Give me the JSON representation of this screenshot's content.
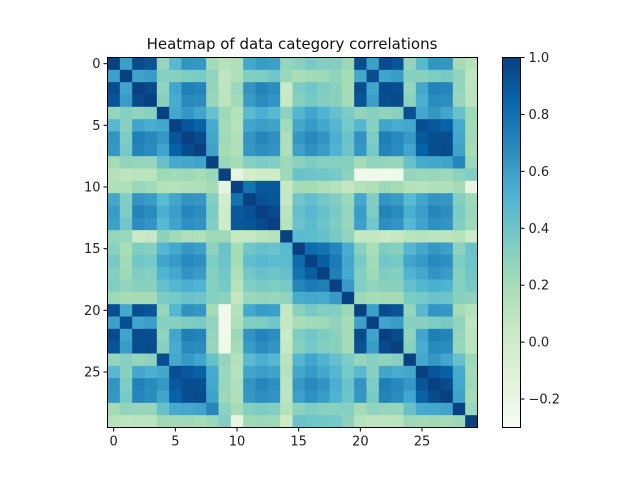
{
  "chart_data": {
    "type": "heatmap",
    "title": "Heatmap of data category correlations",
    "xlabel": "",
    "ylabel": "",
    "n": 30,
    "x_ticks": [
      0,
      5,
      10,
      15,
      20,
      25
    ],
    "y_ticks": [
      0,
      5,
      10,
      15,
      20,
      25
    ],
    "colormap": "GnBu",
    "colormap_stops": [
      "#f7fcf0",
      "#e0f3db",
      "#ccebc5",
      "#a8ddb5",
      "#7bccc4",
      "#4eb3d3",
      "#2b8cbe",
      "#0868ac",
      "#084081"
    ],
    "vmin": -0.3,
    "vmax": 1.0,
    "colorbar_ticks": [
      1.0,
      0.8,
      0.6,
      0.4,
      0.2,
      0.0,
      -0.2
    ],
    "colorbar_tick_labels": [
      "1.0",
      "0.8",
      "0.6",
      "0.4",
      "0.2",
      "0.0",
      "−0.2"
    ],
    "grid": false,
    "colorbar_position": "right",
    "values": [
      [
        1,
        0.59,
        0.95,
        0.92,
        0.26,
        0.48,
        0.64,
        0.63,
        0.2,
        0.13,
        0.15,
        0.56,
        0.61,
        0.59,
        0.26,
        0.3,
        0.36,
        0.32,
        0.33,
        0.23,
        0.94,
        0.59,
        0.95,
        0.92,
        0.26,
        0.48,
        0.64,
        0.63,
        0.2,
        0.13
      ],
      [
        0.59,
        1,
        0.58,
        0.61,
        0.31,
        0.3,
        0.34,
        0.36,
        0.27,
        0.09,
        0.15,
        0.33,
        0.34,
        0.39,
        0.24,
        0.18,
        0.21,
        0.22,
        0.27,
        0.19,
        0.56,
        0.94,
        0.58,
        0.61,
        0.31,
        0.3,
        0.34,
        0.36,
        0.27,
        0.09
      ],
      [
        0.95,
        0.58,
        1,
        0.96,
        0.27,
        0.57,
        0.73,
        0.71,
        0.26,
        0.1,
        0.24,
        0.64,
        0.71,
        0.67,
        0.04,
        0.34,
        0.39,
        0.34,
        0.3,
        0.2,
        0.94,
        0.57,
        0.95,
        0.94,
        0.26,
        0.56,
        0.72,
        0.7,
        0.26,
        0.1
      ],
      [
        0.92,
        0.61,
        0.96,
        1,
        0.3,
        0.54,
        0.69,
        0.68,
        0.25,
        0.11,
        0.21,
        0.61,
        0.68,
        0.64,
        0.05,
        0.31,
        0.37,
        0.32,
        0.3,
        0.2,
        0.91,
        0.6,
        0.94,
        0.95,
        0.29,
        0.53,
        0.68,
        0.67,
        0.25,
        0.11
      ],
      [
        0.26,
        0.31,
        0.27,
        0.3,
        1,
        0.56,
        0.63,
        0.57,
        0.42,
        0.23,
        0.14,
        0.47,
        0.53,
        0.48,
        0.29,
        0.49,
        0.57,
        0.51,
        0.43,
        0.35,
        0.26,
        0.31,
        0.27,
        0.3,
        0.94,
        0.56,
        0.63,
        0.57,
        0.42,
        0.23
      ],
      [
        0.48,
        0.3,
        0.57,
        0.54,
        0.56,
        1,
        0.91,
        0.86,
        0.55,
        0.21,
        0.13,
        0.57,
        0.6,
        0.58,
        0.21,
        0.56,
        0.62,
        0.56,
        0.49,
        0.37,
        0.49,
        0.3,
        0.57,
        0.54,
        0.56,
        0.94,
        0.9,
        0.86,
        0.55,
        0.21
      ],
      [
        0.64,
        0.34,
        0.73,
        0.69,
        0.63,
        0.91,
        1,
        0.95,
        0.56,
        0.22,
        0.15,
        0.64,
        0.7,
        0.66,
        0.16,
        0.63,
        0.69,
        0.64,
        0.53,
        0.41,
        0.65,
        0.34,
        0.73,
        0.69,
        0.62,
        0.9,
        0.94,
        0.94,
        0.56,
        0.22
      ],
      [
        0.63,
        0.36,
        0.71,
        0.68,
        0.57,
        0.86,
        0.95,
        1,
        0.58,
        0.2,
        0.15,
        0.63,
        0.67,
        0.64,
        0.15,
        0.59,
        0.66,
        0.61,
        0.51,
        0.4,
        0.63,
        0.36,
        0.71,
        0.68,
        0.57,
        0.86,
        0.94,
        0.95,
        0.58,
        0.2
      ],
      [
        0.2,
        0.27,
        0.26,
        0.25,
        0.42,
        0.55,
        0.56,
        0.58,
        1,
        0.24,
        0.2,
        0.32,
        0.35,
        0.33,
        0.23,
        0.29,
        0.34,
        0.31,
        0.31,
        0.31,
        0.2,
        0.27,
        0.26,
        0.25,
        0.42,
        0.55,
        0.56,
        0.58,
        0.7,
        0.24
      ],
      [
        0.13,
        0.09,
        0.1,
        0.11,
        0.23,
        0.21,
        0.22,
        0.2,
        0.24,
        1,
        -0.17,
        -0.03,
        0.01,
        0.0,
        0.22,
        0.41,
        0.4,
        0.39,
        0.37,
        0.29,
        -0.25,
        -0.25,
        -0.25,
        -0.24,
        0.26,
        0.24,
        0.25,
        0.23,
        0.29,
        0.33
      ],
      [
        0.15,
        0.15,
        0.24,
        0.21,
        0.14,
        0.13,
        0.15,
        0.15,
        0.2,
        -0.17,
        1,
        0.79,
        0.9,
        0.9,
        0.05,
        0.19,
        0.19,
        0.16,
        0.13,
        0.07,
        0.14,
        0.15,
        0.23,
        0.2,
        0.14,
        0.13,
        0.15,
        0.15,
        0.2,
        -0.17
      ],
      [
        0.56,
        0.33,
        0.64,
        0.61,
        0.47,
        0.57,
        0.64,
        0.63,
        0.32,
        -0.03,
        0.79,
        1,
        0.93,
        0.91,
        0.05,
        0.39,
        0.44,
        0.38,
        0.33,
        0.24,
        0.56,
        0.33,
        0.64,
        0.61,
        0.47,
        0.57,
        0.64,
        0.63,
        0.32,
        0.22
      ],
      [
        0.61,
        0.34,
        0.71,
        0.68,
        0.53,
        0.6,
        0.7,
        0.67,
        0.35,
        0.01,
        0.9,
        0.93,
        1,
        0.96,
        0.1,
        0.43,
        0.48,
        0.42,
        0.36,
        0.26,
        0.61,
        0.34,
        0.71,
        0.68,
        0.53,
        0.6,
        0.7,
        0.67,
        0.35,
        0.24
      ],
      [
        0.59,
        0.39,
        0.67,
        0.64,
        0.48,
        0.58,
        0.66,
        0.64,
        0.33,
        0.0,
        0.9,
        0.91,
        0.96,
        1,
        0.12,
        0.41,
        0.46,
        0.4,
        0.34,
        0.25,
        0.59,
        0.39,
        0.67,
        0.64,
        0.48,
        0.58,
        0.66,
        0.64,
        0.33,
        0.23
      ],
      [
        0.26,
        0.24,
        0.04,
        0.05,
        0.29,
        0.21,
        0.16,
        0.15,
        0.23,
        0.22,
        0.05,
        0.05,
        0.1,
        0.12,
        1,
        0.47,
        0.46,
        0.43,
        0.36,
        0.27,
        0.06,
        0.07,
        0.04,
        0.05,
        0.11,
        0.12,
        0.1,
        0.09,
        0.13,
        0.02
      ],
      [
        0.3,
        0.18,
        0.34,
        0.31,
        0.49,
        0.56,
        0.63,
        0.59,
        0.29,
        0.41,
        0.19,
        0.39,
        0.43,
        0.41,
        0.47,
        1,
        0.82,
        0.79,
        0.7,
        0.54,
        0.3,
        0.18,
        0.34,
        0.31,
        0.49,
        0.56,
        0.63,
        0.59,
        0.29,
        0.41
      ],
      [
        0.36,
        0.21,
        0.39,
        0.37,
        0.57,
        0.62,
        0.69,
        0.66,
        0.34,
        0.4,
        0.19,
        0.44,
        0.48,
        0.46,
        0.46,
        0.82,
        1,
        0.88,
        0.75,
        0.56,
        0.36,
        0.21,
        0.39,
        0.37,
        0.57,
        0.62,
        0.69,
        0.66,
        0.34,
        0.4
      ],
      [
        0.32,
        0.22,
        0.34,
        0.32,
        0.51,
        0.56,
        0.64,
        0.61,
        0.31,
        0.39,
        0.16,
        0.38,
        0.42,
        0.4,
        0.43,
        0.79,
        0.88,
        1,
        0.73,
        0.55,
        0.32,
        0.22,
        0.34,
        0.32,
        0.51,
        0.56,
        0.64,
        0.61,
        0.31,
        0.39
      ],
      [
        0.33,
        0.27,
        0.3,
        0.3,
        0.43,
        0.49,
        0.53,
        0.51,
        0.31,
        0.37,
        0.13,
        0.33,
        0.36,
        0.34,
        0.36,
        0.7,
        0.75,
        0.73,
        1,
        0.62,
        0.33,
        0.27,
        0.3,
        0.3,
        0.43,
        0.49,
        0.53,
        0.51,
        0.31,
        0.37
      ],
      [
        0.23,
        0.19,
        0.2,
        0.2,
        0.35,
        0.37,
        0.41,
        0.4,
        0.31,
        0.29,
        0.07,
        0.24,
        0.26,
        0.25,
        0.27,
        0.54,
        0.56,
        0.55,
        0.62,
        1,
        0.23,
        0.19,
        0.2,
        0.2,
        0.35,
        0.37,
        0.41,
        0.4,
        0.31,
        0.29
      ],
      [
        0.94,
        0.56,
        0.94,
        0.91,
        0.26,
        0.49,
        0.65,
        0.63,
        0.2,
        -0.25,
        0.14,
        0.56,
        0.61,
        0.59,
        0.06,
        0.3,
        0.36,
        0.32,
        0.33,
        0.23,
        1,
        0.59,
        0.95,
        0.92,
        0.26,
        0.48,
        0.64,
        0.63,
        0.2,
        0.13
      ],
      [
        0.59,
        0.94,
        0.57,
        0.6,
        0.31,
        0.3,
        0.34,
        0.36,
        0.27,
        -0.25,
        0.15,
        0.33,
        0.34,
        0.39,
        0.07,
        0.18,
        0.21,
        0.22,
        0.27,
        0.19,
        0.59,
        1,
        0.58,
        0.61,
        0.31,
        0.3,
        0.34,
        0.36,
        0.27,
        0.09
      ],
      [
        0.95,
        0.58,
        0.95,
        0.94,
        0.27,
        0.57,
        0.73,
        0.71,
        0.26,
        -0.25,
        0.23,
        0.64,
        0.71,
        0.67,
        0.04,
        0.34,
        0.39,
        0.34,
        0.3,
        0.2,
        0.95,
        0.58,
        1,
        0.96,
        0.27,
        0.57,
        0.73,
        0.71,
        0.26,
        0.1
      ],
      [
        0.92,
        0.61,
        0.94,
        0.95,
        0.3,
        0.54,
        0.69,
        0.68,
        0.25,
        -0.24,
        0.2,
        0.61,
        0.68,
        0.64,
        0.05,
        0.31,
        0.37,
        0.32,
        0.3,
        0.2,
        0.92,
        0.61,
        0.96,
        1,
        0.3,
        0.54,
        0.69,
        0.68,
        0.25,
        0.11
      ],
      [
        0.26,
        0.31,
        0.26,
        0.29,
        0.94,
        0.56,
        0.62,
        0.57,
        0.42,
        0.26,
        0.14,
        0.47,
        0.53,
        0.48,
        0.11,
        0.49,
        0.57,
        0.51,
        0.43,
        0.35,
        0.26,
        0.31,
        0.27,
        0.3,
        1,
        0.56,
        0.63,
        0.57,
        0.42,
        0.23
      ],
      [
        0.48,
        0.3,
        0.56,
        0.53,
        0.56,
        0.94,
        0.9,
        0.86,
        0.55,
        0.24,
        0.13,
        0.57,
        0.6,
        0.58,
        0.12,
        0.56,
        0.62,
        0.56,
        0.49,
        0.37,
        0.48,
        0.3,
        0.57,
        0.54,
        0.56,
        1,
        0.91,
        0.86,
        0.55,
        0.21
      ],
      [
        0.64,
        0.34,
        0.72,
        0.68,
        0.63,
        0.9,
        0.94,
        0.94,
        0.56,
        0.25,
        0.15,
        0.64,
        0.7,
        0.66,
        0.1,
        0.63,
        0.69,
        0.64,
        0.53,
        0.41,
        0.64,
        0.34,
        0.73,
        0.69,
        0.63,
        0.91,
        1,
        0.95,
        0.56,
        0.22
      ],
      [
        0.63,
        0.36,
        0.7,
        0.67,
        0.57,
        0.86,
        0.94,
        0.95,
        0.58,
        0.23,
        0.15,
        0.63,
        0.67,
        0.64,
        0.09,
        0.59,
        0.66,
        0.61,
        0.51,
        0.4,
        0.63,
        0.36,
        0.71,
        0.68,
        0.57,
        0.86,
        0.95,
        1,
        0.58,
        0.2
      ],
      [
        0.2,
        0.27,
        0.26,
        0.25,
        0.42,
        0.55,
        0.56,
        0.58,
        0.7,
        0.29,
        0.2,
        0.32,
        0.35,
        0.33,
        0.13,
        0.29,
        0.34,
        0.31,
        0.31,
        0.31,
        0.2,
        0.27,
        0.26,
        0.25,
        0.42,
        0.55,
        0.56,
        0.58,
        1,
        0.24
      ],
      [
        0.13,
        0.09,
        0.1,
        0.11,
        0.23,
        0.21,
        0.22,
        0.2,
        0.24,
        0.33,
        -0.17,
        0.22,
        0.24,
        0.23,
        0.02,
        0.41,
        0.4,
        0.39,
        0.37,
        0.29,
        0.13,
        0.09,
        0.1,
        0.11,
        0.23,
        0.21,
        0.22,
        0.2,
        0.24,
        1
      ]
    ]
  }
}
